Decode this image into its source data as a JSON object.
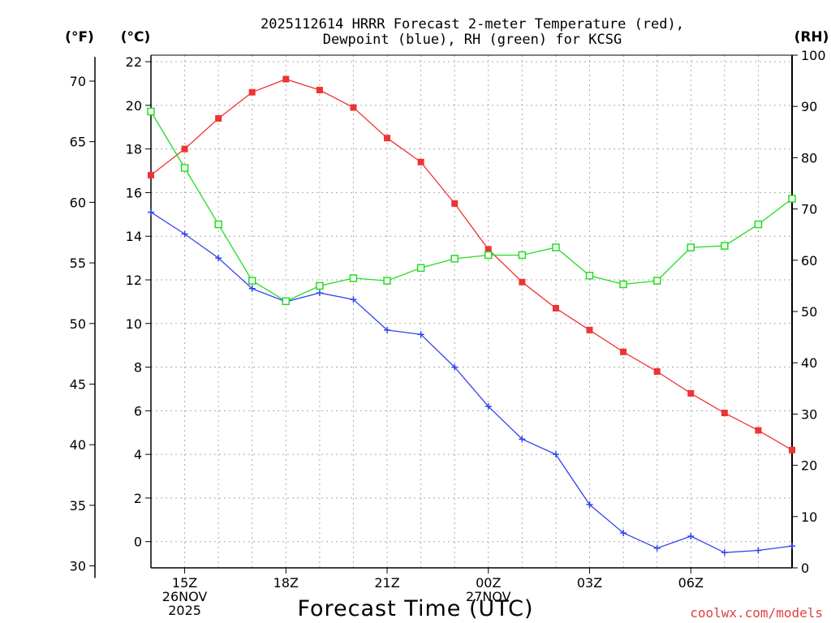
{
  "chart_data": {
    "type": "line",
    "title_line1": "2025112614 HRRR Forecast 2-meter Temperature (red),",
    "title_line2": "Dewpoint (blue), RH (green) for KCSG",
    "xlabel": "Forecast Time (UTC)",
    "credit": "coolwx.com/models",
    "units": {
      "fahrenheit": "(°F)",
      "celsius": "(°C)",
      "rh": "(RH)"
    },
    "x_hours": [
      14,
      15,
      16,
      17,
      18,
      19,
      20,
      21,
      22,
      23,
      24,
      25,
      26,
      27,
      28,
      29,
      30,
      31,
      32,
      33
    ],
    "x_range": [
      14,
      33
    ],
    "x_ticks": [
      {
        "hour": 15,
        "lines": [
          "15Z",
          "26NOV",
          "2025"
        ]
      },
      {
        "hour": 18,
        "lines": [
          "18Z"
        ]
      },
      {
        "hour": 21,
        "lines": [
          "21Z"
        ]
      },
      {
        "hour": 24,
        "lines": [
          "00Z",
          "27NOV"
        ]
      },
      {
        "hour": 27,
        "lines": [
          "03Z"
        ]
      },
      {
        "hour": 30,
        "lines": [
          "06Z"
        ]
      }
    ],
    "celsius_axis": {
      "range": [
        -1.2,
        22.3
      ],
      "ticks": [
        0,
        2,
        4,
        6,
        8,
        10,
        12,
        14,
        16,
        18,
        20,
        22
      ]
    },
    "fahrenheit_ticks": [
      30,
      35,
      40,
      45,
      50,
      55,
      60,
      65,
      70
    ],
    "rh_axis": {
      "range": [
        0,
        100
      ],
      "ticks": [
        0,
        10,
        20,
        30,
        40,
        50,
        60,
        70,
        80,
        90,
        100
      ]
    },
    "series": [
      {
        "name": "Temperature",
        "axis": "celsius",
        "color": "#ee3333",
        "marker": "filled-square",
        "values": [
          16.8,
          18.0,
          19.4,
          20.6,
          21.2,
          20.7,
          19.9,
          18.5,
          17.4,
          15.5,
          13.4,
          11.9,
          10.7,
          9.7,
          8.7,
          7.8,
          6.8,
          5.9,
          5.1,
          4.2
        ]
      },
      {
        "name": "Dewpoint",
        "axis": "celsius",
        "color": "#3344ee",
        "marker": "plus",
        "values": [
          15.1,
          14.1,
          13.0,
          11.6,
          11.0,
          11.4,
          11.1,
          9.7,
          9.5,
          8.0,
          6.2,
          4.7,
          4.0,
          1.7,
          0.4,
          -0.3,
          0.25,
          -0.5,
          -0.4,
          -0.2
        ]
      },
      {
        "name": "RH",
        "axis": "rh",
        "color": "#22dd22",
        "marker": "open-square",
        "values": [
          89,
          78,
          67,
          56,
          52,
          55,
          56.5,
          56,
          58.5,
          60.3,
          61,
          61,
          62.5,
          57,
          55.3,
          56,
          62.5,
          62.8,
          67,
          72
        ]
      }
    ]
  }
}
